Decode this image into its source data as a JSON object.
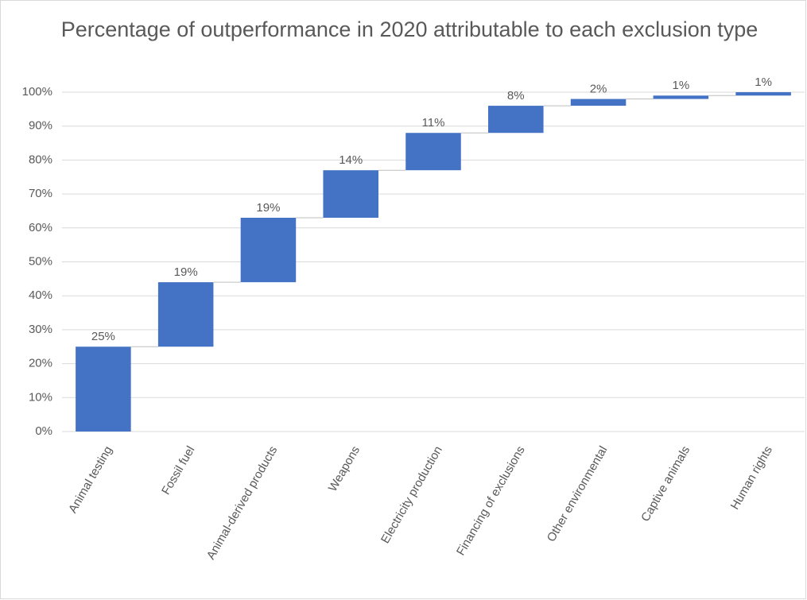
{
  "chart_data": {
    "type": "waterfall",
    "title": "Percentage of outperformance in 2020 attributable to each exclusion type",
    "categories": [
      "Animal testing",
      "Fossil fuel",
      "Animal-derived products",
      "Weapons",
      "Electricity production",
      "Financing of exclusions",
      "Other environmental",
      "Captive animals",
      "Human rights"
    ],
    "values": [
      25,
      19,
      19,
      14,
      11,
      8,
      2,
      1,
      1
    ],
    "value_labels": [
      "25%",
      "19%",
      "19%",
      "14%",
      "11%",
      "8%",
      "2%",
      "1%",
      "1%"
    ],
    "color": "#4472c4",
    "ylim": [
      0,
      100
    ],
    "yticks": [
      {
        "value": 0,
        "label": "0%"
      },
      {
        "value": 10,
        "label": "10%"
      },
      {
        "value": 20,
        "label": "20%"
      },
      {
        "value": 30,
        "label": "30%"
      },
      {
        "value": 40,
        "label": "40%"
      },
      {
        "value": 50,
        "label": "50%"
      },
      {
        "value": 60,
        "label": "60%"
      },
      {
        "value": 70,
        "label": "70%"
      },
      {
        "value": 80,
        "label": "80%"
      },
      {
        "value": 90,
        "label": "90%"
      },
      {
        "value": 100,
        "label": "100%"
      }
    ],
    "grid": true
  }
}
